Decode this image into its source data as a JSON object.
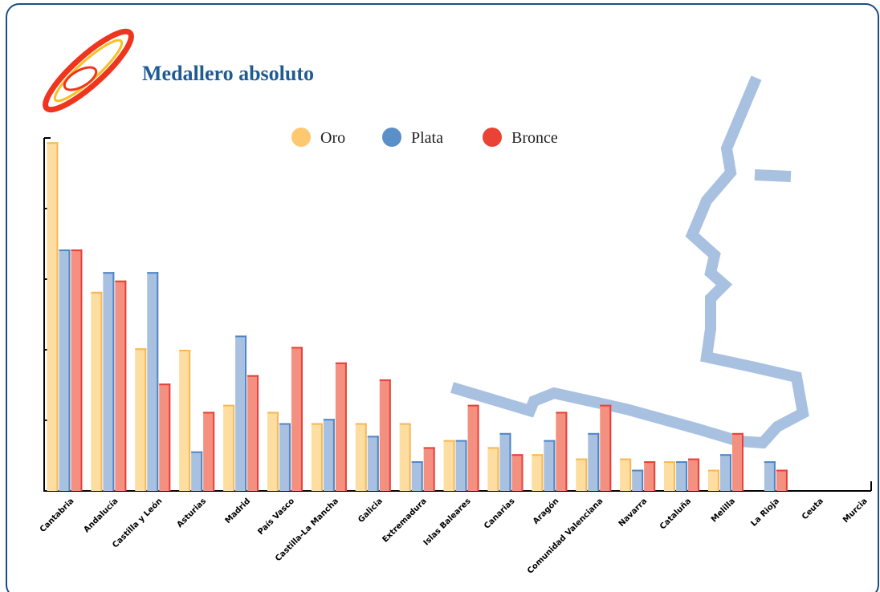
{
  "chart_data": {
    "type": "bar",
    "title": "Medallero absoluto",
    "categories": [
      "Cantabria",
      "Andalucía",
      "Castilla y León",
      "Asturias",
      "Madrid",
      "País Vasco",
      "Castilla-La Mancha",
      "Galicia",
      "Extremadura",
      "Islas Baleares",
      "Canarias",
      "Aragón",
      "Comunidad Valenciana",
      "Navarra",
      "Cataluña",
      "Melilla",
      "La Rioja",
      "Ceuta",
      "Murcia"
    ],
    "series": [
      {
        "name": "Oro",
        "color": "#fddda0",
        "edge": "#f5b955",
        "marker": "#fdc870",
        "values": [
          24.7,
          14.1,
          10.1,
          10,
          6.1,
          5.6,
          4.8,
          4.8,
          4.8,
          3.6,
          3.1,
          2.6,
          2.3,
          2.3,
          2.1,
          1.5,
          0,
          0,
          0
        ]
      },
      {
        "name": "Plata",
        "color": "#a9c1e1",
        "edge": "#4f86c6",
        "marker": "#5b8fc7",
        "values": [
          17.1,
          15.5,
          15.5,
          2.8,
          11,
          4.8,
          5.1,
          3.9,
          2.1,
          3.6,
          4.1,
          3.6,
          4.1,
          1.5,
          2.1,
          2.6,
          2.1,
          0,
          0
        ]
      },
      {
        "name": "Bronce",
        "color": "#f39080",
        "edge": "#e8403a",
        "marker": "#ea4335",
        "values": [
          17.1,
          14.9,
          7.6,
          5.6,
          8.2,
          10.2,
          9.1,
          7.9,
          3.1,
          6.1,
          2.6,
          5.6,
          6.1,
          2.1,
          2.3,
          4.1,
          1.5,
          0,
          0
        ]
      }
    ],
    "ylim": [
      0,
      25
    ],
    "yticks": [
      0,
      5,
      10,
      15,
      20,
      25
    ]
  }
}
